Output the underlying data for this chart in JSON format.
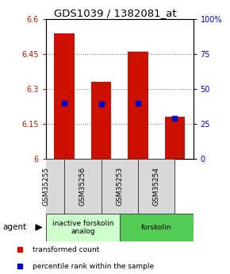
{
  "title": "GDS1039 / 1382081_at",
  "samples": [
    "GSM35255",
    "GSM35256",
    "GSM35253",
    "GSM35254"
  ],
  "bar_values": [
    6.54,
    6.33,
    6.46,
    6.18
  ],
  "percentile_values": [
    40,
    39,
    40,
    29
  ],
  "bar_color": "#cc1100",
  "dot_color": "#0000cc",
  "ylim_left": [
    6.0,
    6.6
  ],
  "ylim_right": [
    0,
    100
  ],
  "yticks_left": [
    6.0,
    6.15,
    6.3,
    6.45,
    6.6
  ],
  "ytick_labels_left": [
    "6",
    "6.15",
    "6.3",
    "6.45",
    "6.6"
  ],
  "yticks_right": [
    0,
    25,
    50,
    75,
    100
  ],
  "ytick_labels_right": [
    "0",
    "25",
    "50",
    "75",
    "100%"
  ],
  "group1_label": "inactive forskolin\nanalog",
  "group2_label": "forskolin",
  "group1_color": "#ccffcc",
  "group2_color": "#55cc55",
  "legend_label1": "transformed count",
  "legend_label2": "percentile rank within the sample",
  "agent_label": "agent",
  "bar_width": 0.55,
  "background_color": "#ffffff",
  "title_fontsize": 9.5,
  "tick_fontsize": 7,
  "sample_fontsize": 6.5,
  "group_fontsize": 6.5,
  "legend_fontsize": 6.5
}
